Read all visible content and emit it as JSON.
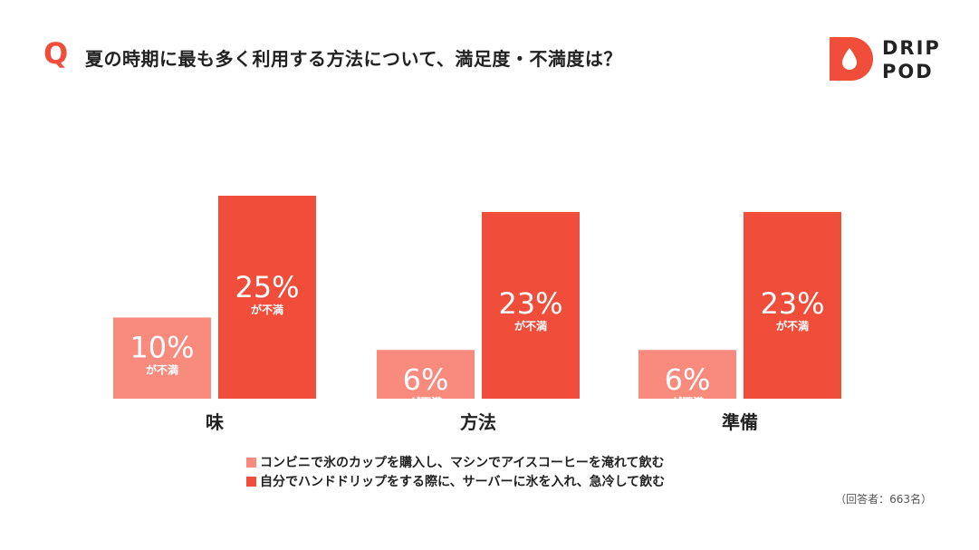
{
  "header": {
    "q_mark": "Q",
    "title": "夏の時期に最も多く利用する方法について、満足度・不満度は？"
  },
  "logo": {
    "line1": "DRIP",
    "line2": "POD"
  },
  "colors": {
    "accent": "#F04E3A",
    "series_light": "#F98A7E",
    "series_dark": "#F04E3A"
  },
  "chart_data": {
    "type": "bar",
    "categories": [
      "味",
      "方法",
      "準備"
    ],
    "series": [
      {
        "name": "コンビニで氷のカップを購入し、マシンでアイスコーヒーを淹れて飲む",
        "values": [
          10,
          6,
          6
        ],
        "color": "#F98A7E"
      },
      {
        "name": "自分でハンドドリップをする際に、サーバーに氷を入れ、急冷して飲む",
        "values": [
          25,
          23,
          23
        ],
        "color": "#F04E3A"
      }
    ],
    "value_suffix": "%",
    "value_sublabel": "が不満",
    "ylim": [
      0,
      25
    ],
    "grid": false,
    "legend_position": "bottom"
  },
  "legend": [
    "コンビニで氷のカップを購入し、マシンでアイスコーヒーを淹れて飲む",
    "自分でハンドドリップをする際に、サーバーに氷を入れ、急冷して飲む"
  ],
  "note": "（回答者：663名）"
}
